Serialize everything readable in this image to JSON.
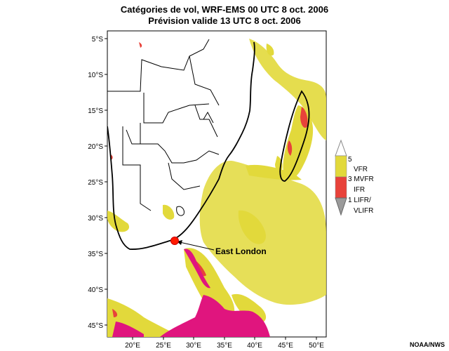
{
  "title": {
    "line1": "Catégories de vol, WRF-EMS 00 UTC 8 oct. 2006",
    "line2": "Prévision valide 13 UTC 8 oct. 2006"
  },
  "lat_labels": [
    "5°S",
    "10°S",
    "15°S",
    "20°S",
    "25°S",
    "30°S",
    "35°S",
    "40°S",
    "45°S"
  ],
  "lon_labels": [
    "20°E",
    "25°E",
    "30°E",
    "35°E",
    "40°E",
    "45°E",
    "50°E"
  ],
  "legend": {
    "scale_top": "5",
    "vfr": "VFR",
    "mvfr_num": "3 MVFR",
    "ifr": "IFR",
    "lifr_num": "1 LIFR/",
    "vlifr": "VLIFR"
  },
  "annotation": {
    "city": "East London"
  },
  "credit": "NOAA/NWS",
  "colors": {
    "vfr": "#e2d93b",
    "mvfr": "#e8423a",
    "ifr": "#e0157e",
    "coast": "#000000"
  }
}
